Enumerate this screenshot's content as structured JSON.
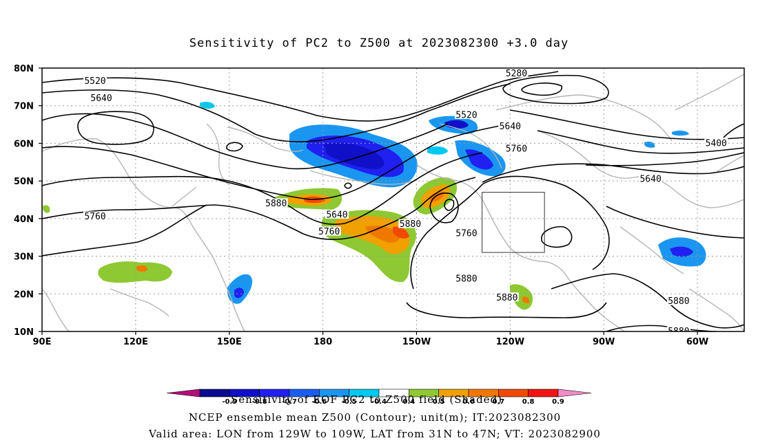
{
  "title": "Sensitivity of PC2 to Z500 at 2023082300 +3.0 day",
  "map": {
    "lat_ticks": [
      "80N",
      "70N",
      "60N",
      "50N",
      "40N",
      "30N",
      "20N",
      "10N"
    ],
    "lon_ticks": [
      "90E",
      "120E",
      "150E",
      "180",
      "150W",
      "120W",
      "90W",
      "60W"
    ],
    "lon_range_deg": [
      90,
      315
    ],
    "lat_range_deg": [
      10,
      80
    ],
    "valid_box": {
      "lon_w": 129,
      "lon_e": 109,
      "lat_s": 31,
      "lat_n": 47
    },
    "gridlines": "dotted",
    "coastline_color": "#b4b4b4",
    "contour_labels": [
      {
        "text": "5520",
        "lon": 107,
        "lat": 76.5
      },
      {
        "text": "5640",
        "lon": 109,
        "lat": 72
      },
      {
        "text": "5280",
        "lon": 242,
        "lat": 78.5
      },
      {
        "text": "5520",
        "lon": 226,
        "lat": 67.5
      },
      {
        "text": "5640",
        "lon": 240,
        "lat": 64.5
      },
      {
        "text": "5760",
        "lon": 242,
        "lat": 58.5
      },
      {
        "text": "5400",
        "lon": 306,
        "lat": 60
      },
      {
        "text": "5640",
        "lon": 285,
        "lat": 50.5
      },
      {
        "text": "5880",
        "lon": 165,
        "lat": 44
      },
      {
        "text": "5640",
        "lon": 184.5,
        "lat": 41
      },
      {
        "text": "5760",
        "lon": 182,
        "lat": 36.5
      },
      {
        "text": "5880",
        "lon": 208,
        "lat": 38.5
      },
      {
        "text": "5760",
        "lon": 107,
        "lat": 40.5
      },
      {
        "text": "5760",
        "lon": 226,
        "lat": 36
      },
      {
        "text": "5880",
        "lon": 226,
        "lat": 24
      },
      {
        "text": "5880",
        "lon": 239,
        "lat": 19
      },
      {
        "text": "5880",
        "lon": 294,
        "lat": 18
      },
      {
        "text": "5880",
        "lon": 294,
        "lat": 10
      }
    ]
  },
  "colorbar": {
    "label": "Sensitivity of EOF PC2 to Z500 field (Shaded)",
    "colors": [
      "#0b0b8f",
      "#1010c8",
      "#2020f0",
      "#1a5ef0",
      "#1a96f0",
      "#00c8f0",
      "#ffffff",
      "#8ec832",
      "#f0a000",
      "#f07800",
      "#f04a00",
      "#f01414"
    ],
    "left_tip_color": "#b0107a",
    "right_tip_color": "#f08cc8",
    "tick_labels": [
      "-0.9",
      "-0.8",
      "-0.7",
      "-0.6",
      "-0.5",
      "-0.4",
      "0.4",
      "0.5",
      "0.6",
      "0.7",
      "0.8",
      "0.9"
    ]
  },
  "footer": {
    "line1": "NCEP ensemble mean Z500 (Contour); unit(m); IT:2023082300",
    "line2": "Valid area: LON from 129W to 109W, LAT from 31N to 47N; VT: 2023082900"
  }
}
